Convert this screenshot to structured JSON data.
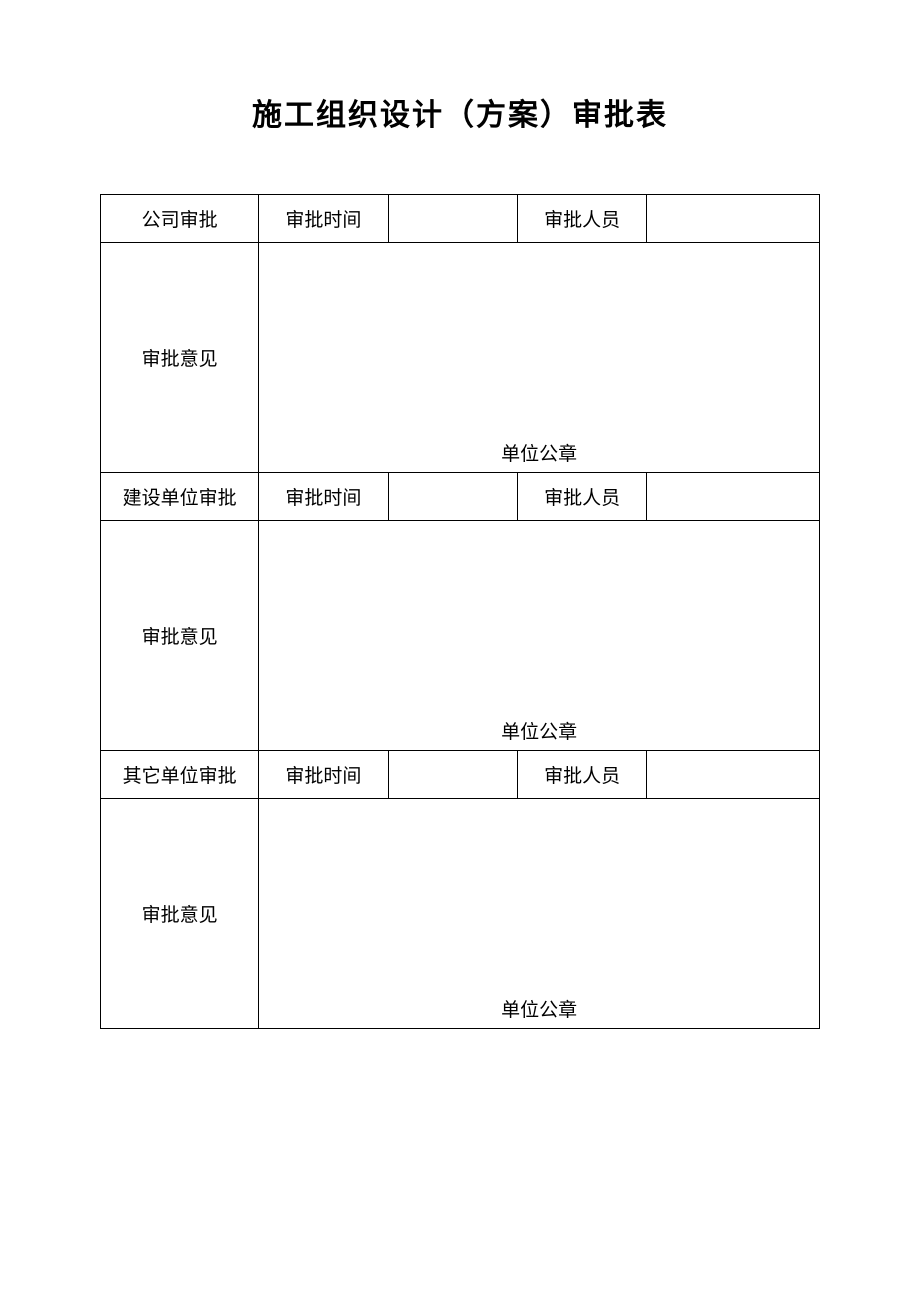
{
  "title": "施工组织设计（方案）审批表",
  "table": {
    "sections": [
      {
        "approval_unit": "公司审批",
        "time_label": "审批时间",
        "time_value": "",
        "person_label": "审批人员",
        "person_value": "",
        "opinion_label": "审批意见",
        "opinion_value": "",
        "stamp_label": "单位公章"
      },
      {
        "approval_unit": "建设单位审批",
        "time_label": "审批时间",
        "time_value": "",
        "person_label": "审批人员",
        "person_value": "",
        "opinion_label": "审批意见",
        "opinion_value": "",
        "stamp_label": "单位公章"
      },
      {
        "approval_unit": "其它单位审批",
        "time_label": "审批时间",
        "time_value": "",
        "person_label": "审批人员",
        "person_value": "",
        "opinion_label": "审批意见",
        "opinion_value": "",
        "stamp_label": "单位公章"
      }
    ],
    "columns": {
      "widths_percent": [
        22,
        18,
        18,
        18,
        24
      ]
    },
    "styling": {
      "border_color": "#000000",
      "background_color": "#ffffff",
      "text_color": "#000000",
      "title_fontsize": 30,
      "cell_fontsize": 19,
      "header_row_height": 48,
      "content_row_height": 230
    }
  }
}
